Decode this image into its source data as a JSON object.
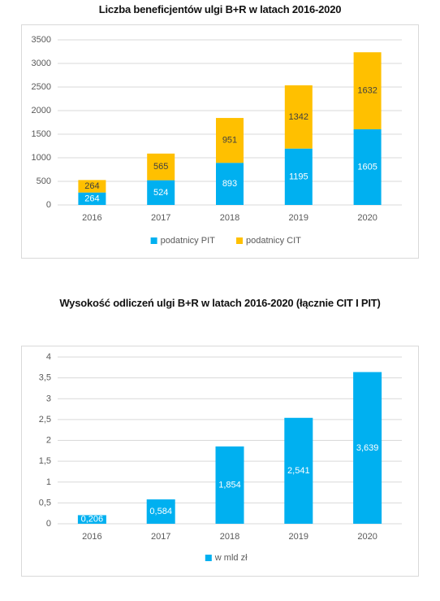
{
  "colors": {
    "pit": "#00B0F0",
    "cit": "#FFC000",
    "grid": "#d9d9d9",
    "axis_text": "#595959"
  },
  "chart_data": [
    {
      "type": "bar",
      "stacked": true,
      "title": "Liczba beneficjentów ulgi B+R w latach 2016-2020",
      "categories": [
        "2016",
        "2017",
        "2018",
        "2019",
        "2020"
      ],
      "series": [
        {
          "name": "podatnicy PIT",
          "values": [
            264,
            524,
            893,
            1195,
            1605
          ]
        },
        {
          "name": "podatnicy CIT",
          "values": [
            264,
            565,
            951,
            1342,
            1632
          ]
        }
      ],
      "ylim": [
        0,
        3500
      ],
      "yticks": [
        0,
        500,
        1000,
        1500,
        2000,
        2500,
        3000,
        3500
      ],
      "yticklabels": [
        "0",
        "500",
        "1000",
        "1500",
        "2000",
        "2500",
        "3000",
        "3500"
      ],
      "grid": true,
      "legend": "bottom"
    },
    {
      "type": "bar",
      "title": "Wysokość odliczeń ulgi B+R w latach 2016-2020 (łącznie CIT I PIT)",
      "categories": [
        "2016",
        "2017",
        "2018",
        "2019",
        "2020"
      ],
      "series": [
        {
          "name": "w mld zł",
          "values": [
            0.206,
            0.584,
            1.854,
            2.541,
            3.639
          ],
          "labels": [
            "0,206",
            "0,584",
            "1,854",
            "2,541",
            "3,639"
          ]
        }
      ],
      "ylim": [
        0,
        4
      ],
      "yticks": [
        0,
        0.5,
        1,
        1.5,
        2,
        2.5,
        3,
        3.5,
        4
      ],
      "yticklabels": [
        "0",
        "0,5",
        "1",
        "1,5",
        "2",
        "2,5",
        "3",
        "3,5",
        "4"
      ],
      "grid": true,
      "legend": "bottom"
    }
  ]
}
